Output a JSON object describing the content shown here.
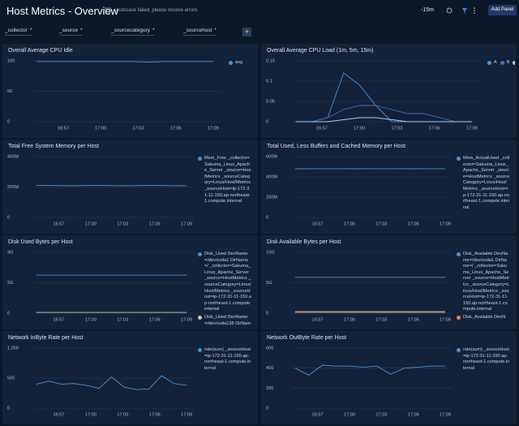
{
  "header": {
    "title": "Host Metrics - Overview",
    "status": "Autosave failed, please resolve errors",
    "time_range": "-15m",
    "button": "Add Panel"
  },
  "filters": [
    "_collector",
    "_source",
    "_sourcecategory",
    "_sourcehost"
  ],
  "filter_value": "*",
  "panels": [
    {
      "title": "Overall Average CPU Idle",
      "ylim": [
        0,
        100
      ],
      "yticks": [
        0,
        50,
        100
      ],
      "xticks": [
        "16:57",
        "17:00",
        "17:03",
        "17:06",
        "17:09"
      ],
      "series": [
        {
          "name": "avg",
          "color": "#4a8fd8",
          "values": [
            99,
            99,
            99,
            99,
            99,
            99,
            99,
            98,
            99,
            99,
            99,
            99
          ]
        }
      ]
    },
    {
      "title": "Overall Average CPU Load (1m, 5m, 15m)",
      "ylim": [
        0,
        0.15
      ],
      "yticks": [
        0,
        0.05,
        0.1,
        0.15
      ],
      "xticks": [
        "16:57",
        "17:00",
        "17:03",
        "17:06",
        "17:09"
      ],
      "series": [
        {
          "name": "A",
          "color": "#4a8fd8",
          "values": [
            0,
            0,
            0.01,
            0.12,
            0.09,
            0.04,
            0,
            0,
            0,
            0,
            0,
            0
          ]
        },
        {
          "name": "B",
          "color": "#3f6fc8",
          "values": [
            0,
            0,
            0.01,
            0.03,
            0.04,
            0.04,
            0.03,
            0.02,
            0.02,
            0.01,
            0,
            0
          ]
        },
        {
          "name": "C",
          "color": "#9fd0f5",
          "values": [
            0,
            0,
            0,
            0.005,
            0.01,
            0.01,
            0.005,
            0,
            0,
            0,
            0,
            0
          ]
        }
      ]
    },
    {
      "title": "Total Free System Memory per Host",
      "ylim": [
        0,
        400000000
      ],
      "yticks": [
        0,
        {
          "value": 200000000,
          "label": "200M"
        },
        {
          "value": 400000000,
          "label": "400M"
        }
      ],
      "xticks": [
        "16:57",
        "17:00",
        "17:03",
        "17:06",
        "17:09"
      ],
      "series": [
        {
          "name": "Mem_Free _collector=Sakuma_Linux_Apache_Server _source=HostMetrics _sourceCategory=Linux/Host/Metrics _sourceHost=ip-172-31-11-150.ap-northeast-1.compute.internal",
          "color": "#4a8fd8",
          "values": [
            210000000,
            210000000,
            209000000,
            209000000,
            210000000,
            210000000,
            209000000,
            209000000,
            210000000,
            210000000,
            209000000,
            209000000
          ]
        }
      ]
    },
    {
      "title": "Total Used, Less Buffers and Cached Memory per Host",
      "ylim": [
        0,
        600000000
      ],
      "yticks": [
        0,
        {
          "value": 200000000,
          "label": "200M"
        },
        {
          "value": 400000000,
          "label": "400M"
        },
        {
          "value": 600000000,
          "label": "600M"
        }
      ],
      "xticks": [
        "16:57",
        "17:00",
        "17:03",
        "17:06",
        "17:09"
      ],
      "series": [
        {
          "name": "Mem_ActualUsed _collector=Sakuma_Linux_Apache_Server _source=HostMetrics _sourceCategory=Linux/Host/Metrics _sourceHost=ip-172-31-11-150.ap-northeast-1.compute.internal",
          "color": "#4a8fd8",
          "values": [
            480000000,
            480000000,
            481000000,
            481000000,
            480000000,
            480000000,
            481000000,
            481000000,
            480000000,
            480000000,
            481000000,
            481000000
          ]
        }
      ]
    },
    {
      "title": "Disk Used Bytes per Host",
      "ylim": [
        0,
        4000000000
      ],
      "yticks": [
        0,
        {
          "value": 2000000000,
          "label": "2G"
        },
        {
          "value": 4000000000,
          "label": "4G"
        }
      ],
      "xticks": [
        "16:57",
        "17:00",
        "17:03",
        "17:06",
        "17:09"
      ],
      "series": [
        {
          "name": "Disk_Used DevName=/dev/xvda1 DirName=/ _collector=Sakuma_Linux_Apache_Server _source=HostMetrics _sourceCategory=Linux/Host/Metrics _sourceHost=ip-172-31-11-150.ap-northeast-1.compute.internal",
          "color": "#4a8fd8",
          "values": [
            2500000000,
            2500000000,
            2500000000,
            2500000000,
            2500000000,
            2500000000,
            2500000000,
            2500000000,
            2500000000,
            2500000000,
            2500000000,
            2500000000
          ]
        },
        {
          "name": "Disk_Used DevName=/dev/xvda128 DirName",
          "color": "#d9c7a8",
          "values": [
            50000000,
            50000000,
            50000000,
            50000000,
            50000000,
            50000000,
            50000000,
            50000000,
            50000000,
            50000000,
            50000000,
            50000000
          ]
        }
      ]
    },
    {
      "title": "Disk Available Bytes per Host",
      "ylim": [
        0,
        10000000000
      ],
      "yticks": [
        0,
        {
          "value": 5000000000,
          "label": "5G"
        },
        {
          "value": 10000000000,
          "label": "10G"
        }
      ],
      "xticks": [
        "16:57",
        "17:00",
        "17:03",
        "17:06",
        "17:09"
      ],
      "series": [
        {
          "name": "Disk_Available DevName=/dev/xvda1 DirName=/ _collector=Sakuma_Linux_Apache_Server _source=HostMetrics _sourceCategory=Linux/Host/Metrics _sourceHost=ip-172-31-11-150.ap-northeast-1.compute.internal",
          "color": "#4a8fd8",
          "values": [
            5900000000,
            5900000000,
            5900000000,
            5900000000,
            5900000000,
            5900000000,
            5900000000,
            5900000000,
            5900000000,
            5900000000,
            5900000000,
            5900000000
          ]
        },
        {
          "name": "Disk_Available DevN",
          "color": "#e0845f",
          "values": [
            300000000,
            300000000,
            300000000,
            300000000,
            300000000,
            300000000,
            300000000,
            300000000,
            300000000,
            300000000,
            300000000,
            300000000
          ]
        },
        {
          "color": "#d9c7a8",
          "values": [
            150000000,
            150000000,
            150000000,
            150000000,
            150000000,
            150000000,
            150000000,
            150000000,
            150000000,
            150000000,
            150000000,
            150000000
          ]
        }
      ]
    },
    {
      "title": "Network InByte Rate per Host",
      "ylim": [
        0,
        1000
      ],
      "yticks": [
        0,
        500,
        {
          "value": 1000,
          "label": "1,000"
        }
      ],
      "xticks": [
        "16:57",
        "17:00",
        "17:03",
        "17:06",
        "17:09"
      ],
      "series": [
        {
          "name": "rate(sum) _sourceHost=ip-172-31-11-150.ap-northeast-1.compute.internal",
          "color": "#4a8fd8",
          "values": [
            400,
            450,
            400,
            410,
            380,
            330,
            520,
            350,
            310,
            320,
            540,
            410,
            380
          ]
        }
      ]
    },
    {
      "title": "Network OutByte Rate per Host",
      "ylim": [
        0,
        600
      ],
      "yticks": [
        0,
        200,
        400,
        600
      ],
      "xticks": [
        "16:57",
        "17:00",
        "17:03",
        "17:06",
        "17:09"
      ],
      "series": [
        {
          "name": "rate(sum) _sourceHost=ip-172-31-11-150.ap-northeast-1.compute.internal",
          "color": "#4a8fd8",
          "values": [
            400,
            330,
            430,
            420,
            420,
            410,
            420,
            340,
            400,
            410,
            420,
            420
          ]
        }
      ]
    }
  ]
}
